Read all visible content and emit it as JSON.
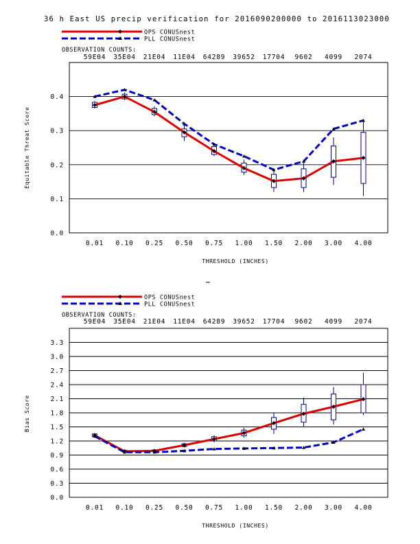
{
  "title": "36 h East US precip verification for 2016090200000 to 2016113023000",
  "colors": {
    "red": "#e00000",
    "blue": "#0000cc",
    "box": "#000088",
    "grid": "#000000"
  },
  "chart_data": [
    {
      "type": "line",
      "legend": [
        {
          "name": "OPS CONUSnest",
          "color": "#e00000",
          "style": "solid"
        },
        {
          "name": "PLL CONUSnest",
          "color": "#0000cc",
          "style": "dashed"
        }
      ],
      "obs_label": "OBSERVATION COUNTS:",
      "obs_counts": [
        "59E04",
        "35E04",
        "21E04",
        "11E04",
        "64289",
        "39652",
        "17704",
        "9602",
        "4099",
        "2074"
      ],
      "categories": [
        "0.01",
        "0.10",
        "0.25",
        "0.50",
        "0.75",
        "1.00",
        "1.50",
        "2.00",
        "3.00",
        "4.00"
      ],
      "xlabel": "THRESHOLD (INCHES)",
      "ylabel": "Equitable Threat Score",
      "ylim": [
        0,
        0.5
      ],
      "yticks": [
        "0.0",
        "0.1",
        "0.2",
        "0.3",
        "0.4"
      ],
      "yticks_values": [
        0,
        0.1,
        0.2,
        0.3,
        0.4
      ],
      "series": [
        {
          "name": "OPS CONUSnest",
          "values": [
            0.375,
            0.4,
            0.355,
            0.295,
            0.24,
            0.19,
            0.152,
            0.16,
            0.21,
            0.22
          ]
        },
        {
          "name": "PLL CONUSnest",
          "values": [
            0.4,
            0.42,
            0.39,
            0.32,
            0.26,
            0.225,
            0.185,
            0.21,
            0.305,
            0.33
          ]
        }
      ],
      "boxes": [
        {
          "low": 0.365,
          "q1": 0.368,
          "q3": 0.383,
          "high": 0.387
        },
        {
          "low": 0.39,
          "q1": 0.393,
          "q3": 0.407,
          "high": 0.412
        },
        {
          "low": 0.342,
          "q1": 0.347,
          "q3": 0.365,
          "high": 0.372
        },
        {
          "low": 0.27,
          "q1": 0.282,
          "q3": 0.305,
          "high": 0.318
        },
        {
          "low": 0.225,
          "q1": 0.23,
          "q3": 0.253,
          "high": 0.262
        },
        {
          "low": 0.17,
          "q1": 0.178,
          "q3": 0.205,
          "high": 0.215
        },
        {
          "low": 0.12,
          "q1": 0.133,
          "q3": 0.172,
          "high": 0.185
        },
        {
          "low": 0.12,
          "q1": 0.133,
          "q3": 0.188,
          "high": 0.205
        },
        {
          "low": 0.14,
          "q1": 0.163,
          "q3": 0.255,
          "high": 0.28
        },
        {
          "low": 0.108,
          "q1": 0.145,
          "q3": 0.295,
          "high": 0.33
        }
      ]
    },
    {
      "type": "line",
      "legend": [
        {
          "name": "OPS CONUSnest",
          "color": "#e00000",
          "style": "solid"
        },
        {
          "name": "PLL CONUSnest",
          "color": "#0000cc",
          "style": "dashed"
        }
      ],
      "obs_label": "OBSERVATION COUNTS:",
      "obs_counts": [
        "59E04",
        "35E04",
        "21E04",
        "11E04",
        "64289",
        "39652",
        "17704",
        "9602",
        "4099",
        "2074"
      ],
      "categories": [
        "0.01",
        "0.10",
        "0.25",
        "0.50",
        "0.75",
        "1.00",
        "1.50",
        "2.00",
        "3.00",
        "4.00"
      ],
      "xlabel": "THRESHOLD (INCHES)",
      "ylabel": "Bias Score",
      "ylim": [
        0,
        3.6
      ],
      "yticks": [
        "0.0",
        "0.3",
        "0.6",
        "0.9",
        "1.2",
        "1.5",
        "1.8",
        "2.1",
        "2.4",
        "2.7",
        "3.0",
        "3.3"
      ],
      "yticks_values": [
        0,
        0.3,
        0.6,
        0.9,
        1.2,
        1.5,
        1.8,
        2.1,
        2.4,
        2.7,
        3.0,
        3.3
      ],
      "series": [
        {
          "name": "OPS CONUSnest",
          "values": [
            1.32,
            0.98,
            0.99,
            1.11,
            1.24,
            1.37,
            1.58,
            1.78,
            1.93,
            2.09
          ]
        },
        {
          "name": "PLL CONUSnest",
          "values": [
            1.3,
            0.96,
            0.96,
            0.99,
            1.03,
            1.04,
            1.05,
            1.06,
            1.17,
            1.45
          ]
        }
      ],
      "boxes": [
        {
          "low": 1.27,
          "q1": 1.29,
          "q3": 1.35,
          "high": 1.37
        },
        {
          "low": 0.96,
          "q1": 0.97,
          "q3": 1.0,
          "high": 1.01
        },
        {
          "low": 0.96,
          "q1": 0.97,
          "q3": 1.01,
          "high": 1.02
        },
        {
          "low": 1.06,
          "q1": 1.08,
          "q3": 1.14,
          "high": 1.16
        },
        {
          "low": 1.17,
          "q1": 1.2,
          "q3": 1.29,
          "high": 1.32
        },
        {
          "low": 1.27,
          "q1": 1.31,
          "q3": 1.43,
          "high": 1.48
        },
        {
          "low": 1.35,
          "q1": 1.45,
          "q3": 1.7,
          "high": 1.8
        },
        {
          "low": 1.5,
          "q1": 1.6,
          "q3": 1.98,
          "high": 2.12
        },
        {
          "low": 1.55,
          "q1": 1.65,
          "q3": 2.2,
          "high": 2.35
        },
        {
          "low": 1.75,
          "q1": 1.8,
          "q3": 2.4,
          "high": 2.65
        }
      ]
    }
  ]
}
